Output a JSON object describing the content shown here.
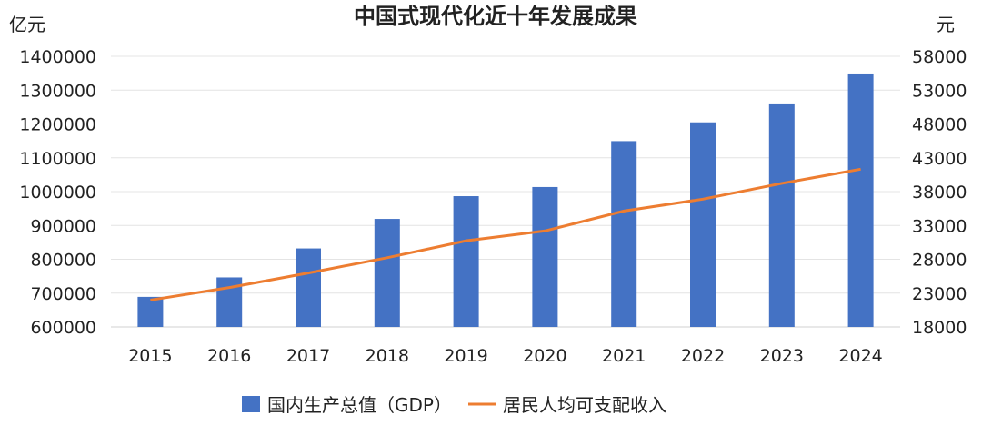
{
  "chart_data": {
    "type": "bar",
    "title": "中国式现代化近十年发展成果",
    "ylabel": "亿元",
    "y2label": "元",
    "categories": [
      "2015",
      "2016",
      "2017",
      "2018",
      "2019",
      "2020",
      "2021",
      "2022",
      "2023",
      "2024"
    ],
    "ylim": [
      600000,
      1400000
    ],
    "yticks": [
      "600000",
      "700000",
      "800000",
      "900000",
      "1000000",
      "1100000",
      "1200000",
      "1300000",
      "1400000"
    ],
    "y2lim": [
      18000,
      58000
    ],
    "y2ticks": [
      "18000",
      "23000",
      "28000",
      "33000",
      "38000",
      "43000",
      "48000",
      "53000",
      "58000"
    ],
    "grid": true,
    "legend_position": "bottom",
    "series": [
      {
        "name": "国内生产总值（GDP）",
        "type": "bar",
        "axis": "left",
        "color": "#4472C4",
        "values": [
          688858,
          746395,
          832036,
          919281,
          986515,
          1013567,
          1149237,
          1204724,
          1260582,
          1349084
        ]
      },
      {
        "name": "居民人均可支配收入",
        "type": "line",
        "axis": "right",
        "color": "#ED7D31",
        "values": [
          21966,
          23821,
          25974,
          28228,
          30733,
          32189,
          35128,
          36883,
          39218,
          41314
        ]
      }
    ]
  }
}
